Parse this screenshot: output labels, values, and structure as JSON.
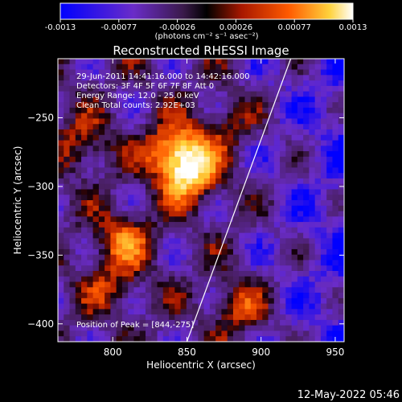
{
  "chart_data": {
    "type": "heatmap",
    "title": "Reconstructed RHESSI Image",
    "xlabel": "Heliocentric X (arcsec)",
    "ylabel": "Heliocentric Y (arcsec)",
    "xlim": [
      763,
      956
    ],
    "ylim": [
      -413,
      -207
    ],
    "xticks": [
      800,
      850,
      900,
      950
    ],
    "yticks": [
      -250,
      -300,
      -350,
      -400
    ],
    "colorbar": {
      "min": -0.0013,
      "max": 0.0013,
      "ticks": [
        "-0.0013",
        "-0.00077",
        "-0.00026",
        "0.00026",
        "0.00077",
        "0.0013"
      ],
      "unit_label": "(photons cm⁻² s⁻¹ asec⁻²)"
    },
    "info_lines": [
      "29-Jun-2011 14:41:16.000 to 14:42:16.000",
      "Detectors: 3F 4F 5F 6F 7F 8F  Att 0",
      "Energy Range: 12.0 - 25.0 keV",
      "Clean    Total counts: 2.92E+03"
    ],
    "peak_label": "Position of Peak = [844,-275]",
    "peak": [
      844,
      -275
    ],
    "limb_line": [
      [
        850,
        -413
      ],
      [
        920,
        -207
      ]
    ],
    "sources": [
      {
        "x": 845,
        "y": -275,
        "amp": 1.0
      },
      {
        "x": 853,
        "y": -293,
        "amp": 0.9
      },
      {
        "x": 808,
        "y": -340,
        "amp": 0.65
      },
      {
        "x": 780,
        "y": -270,
        "amp": 0.45
      },
      {
        "x": 800,
        "y": -375,
        "amp": 0.4
      },
      {
        "x": 887,
        "y": -390,
        "amp": 0.5
      },
      {
        "x": 880,
        "y": -255,
        "amp": 0.3
      }
    ]
  },
  "timestamp": "12-May-2022 05:46"
}
